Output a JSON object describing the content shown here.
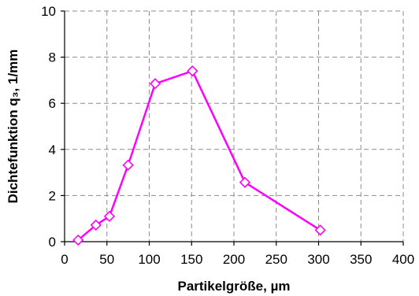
{
  "chart_data": {
    "type": "line",
    "title": "",
    "xlabel": "Partikelgröße, µm",
    "ylabel": "Dichtefunktion q₃, 1/mm",
    "xlim": [
      0,
      400
    ],
    "ylim": [
      0,
      10
    ],
    "x_ticks": [
      "0",
      "50",
      "100",
      "150",
      "200",
      "250",
      "300",
      "350",
      "400"
    ],
    "y_ticks": [
      "0",
      "2",
      "4",
      "6",
      "8",
      "10"
    ],
    "grid": true,
    "series": [
      {
        "color": "#ff00ff",
        "marker": "diamond-open",
        "x": [
          16,
          37,
          53,
          75,
          107,
          151,
          213,
          302
        ],
        "y": [
          0.07,
          0.72,
          1.1,
          3.32,
          6.85,
          7.4,
          2.57,
          0.5
        ]
      }
    ]
  }
}
